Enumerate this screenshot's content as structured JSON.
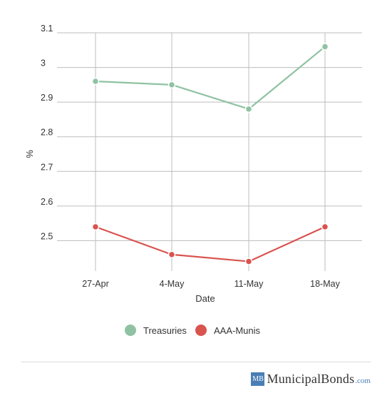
{
  "chart_data": {
    "type": "line",
    "categories": [
      "27-Apr",
      "4-May",
      "11-May",
      "18-May"
    ],
    "series": [
      {
        "name": "Treasuries",
        "values": [
          2.96,
          2.95,
          2.88,
          3.06
        ],
        "color": "#8fc2a2"
      },
      {
        "name": "AAA-Munis",
        "values": [
          2.54,
          2.46,
          2.44,
          2.54
        ],
        "color": "#d9534f"
      }
    ],
    "xlabel": "Date",
    "ylabel": "%",
    "ylim": [
      2.4,
      3.1
    ],
    "yticks": [
      {
        "value": 2.5,
        "label": "2.5"
      },
      {
        "value": 2.6,
        "label": "2.6"
      },
      {
        "value": 2.7,
        "label": "2.7"
      },
      {
        "value": 2.8,
        "label": "2.8"
      },
      {
        "value": 2.9,
        "label": "2.9"
      },
      {
        "value": 3.0,
        "label": "3"
      },
      {
        "value": 3.1,
        "label": "3.1"
      }
    ],
    "grid": true,
    "legend_position": "bottom"
  },
  "branding": {
    "badge": "MB",
    "name": "MunicipalBonds",
    "suffix": ".com"
  }
}
